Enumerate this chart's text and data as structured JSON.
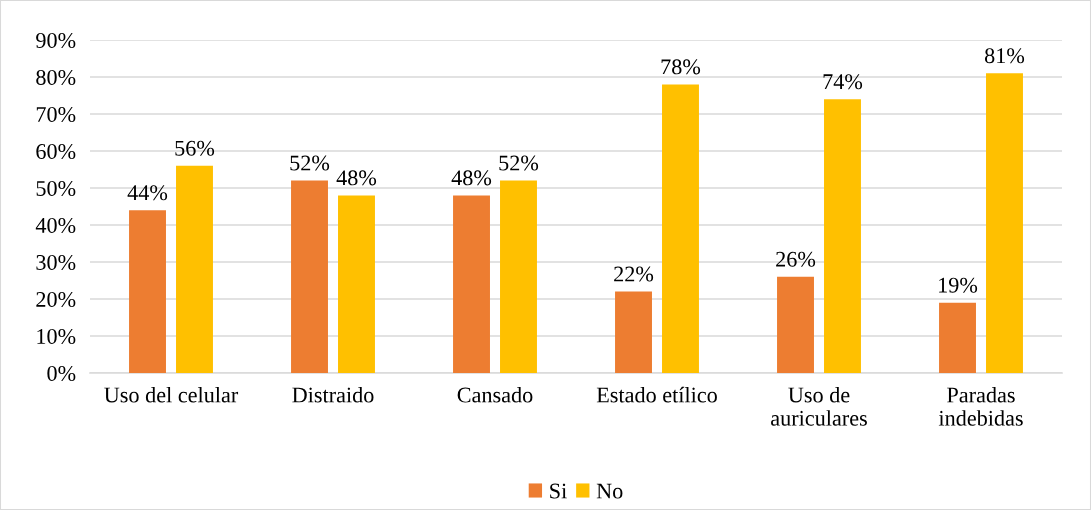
{
  "chart_data": {
    "type": "bar",
    "categories": [
      "Uso del celular",
      "Distraido",
      "Cansado",
      "Estado etílico",
      "Uso de\nauriculares",
      "Paradas\nindebidas"
    ],
    "series": [
      {
        "name": "Si",
        "color": "#ed7d31",
        "values": [
          44,
          52,
          48,
          22,
          26,
          19
        ],
        "value_labels": [
          "44%",
          "52%",
          "48%",
          "22%",
          "26%",
          "19%"
        ]
      },
      {
        "name": "No",
        "color": "#ffc000",
        "values": [
          56,
          48,
          52,
          78,
          74,
          81
        ],
        "value_labels": [
          "56%",
          "48%",
          "52%",
          "78%",
          "74%",
          "81%"
        ]
      }
    ],
    "ylim": [
      0,
      90
    ],
    "yticks": [
      {
        "value": 0,
        "label": "0%"
      },
      {
        "value": 10,
        "label": "10%"
      },
      {
        "value": 20,
        "label": "20%"
      },
      {
        "value": 30,
        "label": "30%"
      },
      {
        "value": 40,
        "label": "40%"
      },
      {
        "value": 50,
        "label": "50%"
      },
      {
        "value": 60,
        "label": "60%"
      },
      {
        "value": 70,
        "label": "70%"
      },
      {
        "value": 80,
        "label": "80%"
      },
      {
        "value": 90,
        "label": "90%"
      }
    ],
    "grid": "y",
    "legend": "bottom"
  }
}
